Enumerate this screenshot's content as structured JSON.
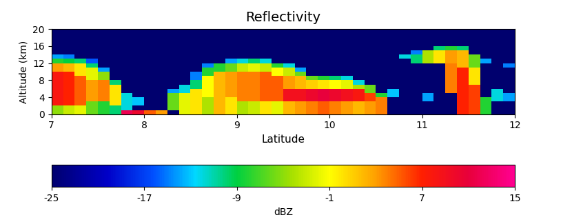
{
  "chart_data": {
    "type": "heatmap",
    "title": "Reflectivity",
    "x_label": "Latitude",
    "y_label": "Altitude (km)",
    "xlim": [
      7,
      12
    ],
    "xticks": [
      7,
      8,
      9,
      10,
      11,
      12
    ],
    "ylim": [
      0,
      20
    ],
    "yticks": [
      0,
      4,
      8,
      12,
      16,
      20
    ],
    "x_edges": [
      7,
      7.125,
      7.25,
      7.375,
      7.5,
      7.625,
      7.75,
      7.875,
      8,
      8.125,
      8.25,
      8.375,
      8.5,
      8.625,
      8.75,
      8.875,
      9,
      9.125,
      9.25,
      9.375,
      9.5,
      9.625,
      9.75,
      9.875,
      10,
      10.125,
      10.25,
      10.375,
      10.5,
      10.625,
      10.75,
      10.875,
      11,
      11.125,
      11.25,
      11.375,
      11.5,
      11.625,
      11.75,
      11.875,
      12
    ],
    "y_edges": [
      0,
      1,
      2,
      3,
      4,
      5,
      6,
      7,
      8,
      9,
      10,
      11,
      12,
      13,
      14,
      15,
      16,
      17,
      18,
      19,
      20
    ],
    "cells": [
      [
        -5,
        -3,
        -2,
        -6,
        -8,
        -10,
        12,
        10,
        5,
        3,
        -25,
        -2,
        0,
        -4,
        2,
        0,
        -4,
        -3,
        0,
        -2,
        2,
        3,
        4,
        5,
        4,
        3,
        2,
        3,
        4,
        -25,
        -25,
        -25,
        -25,
        -25,
        -25,
        7,
        6,
        -8,
        -25,
        -25
      ],
      [
        -5,
        -3,
        -2,
        -6,
        -8,
        -10,
        -12,
        -25,
        -25,
        -25,
        -6,
        -2,
        0,
        -4,
        2,
        0,
        -4,
        -3,
        0,
        -2,
        2,
        3,
        4,
        5,
        4,
        3,
        2,
        3,
        4,
        -25,
        -25,
        -25,
        -25,
        -25,
        -25,
        7,
        6,
        -8,
        -25,
        -25
      ],
      [
        8,
        7,
        5,
        -6,
        -8,
        0,
        -12,
        -13,
        -25,
        -25,
        -6,
        -2,
        0,
        -4,
        2,
        0,
        -4,
        -3,
        0,
        -2,
        2,
        3,
        4,
        5,
        4,
        3,
        2,
        3,
        4,
        -25,
        -25,
        -25,
        -25,
        -25,
        -25,
        7,
        6,
        -8,
        -25,
        -25
      ],
      [
        8,
        7,
        5,
        3,
        4,
        0,
        -12,
        -13,
        -25,
        -25,
        -6,
        -2,
        0,
        -4,
        2,
        0,
        4,
        4,
        5,
        5,
        9,
        9,
        10,
        11,
        10,
        9,
        8,
        6,
        4,
        -25,
        -25,
        -25,
        -14,
        -25,
        -25,
        7,
        6,
        -8,
        -12,
        -14
      ],
      [
        8,
        7,
        5,
        3,
        4,
        0,
        -12,
        -25,
        -25,
        -25,
        -6,
        -2,
        0,
        -1,
        2,
        3,
        4,
        4,
        5,
        5,
        9,
        9,
        10,
        11,
        10,
        9,
        8,
        6,
        -8,
        -13,
        -25,
        -25,
        -14,
        -25,
        -25,
        7,
        6,
        -25,
        -12,
        -14
      ],
      [
        8,
        7,
        5,
        3,
        4,
        0,
        -25,
        -25,
        -25,
        -25,
        -14,
        -12,
        0,
        -1,
        2,
        3,
        4,
        4,
        5,
        5,
        9,
        9,
        10,
        11,
        10,
        9,
        8,
        -6,
        -25,
        -13,
        -25,
        -25,
        -25,
        -25,
        4,
        7,
        6,
        -25,
        -12,
        -25
      ],
      [
        8,
        7,
        5,
        3,
        4,
        0,
        -25,
        -25,
        -25,
        -25,
        -25,
        -12,
        -10,
        -1,
        2,
        3,
        4,
        4,
        5,
        5,
        3,
        2,
        1,
        0,
        -1,
        -2,
        -4,
        -6,
        -25,
        -25,
        -25,
        -25,
        -25,
        -25,
        4,
        7,
        6,
        -25,
        -25,
        -25
      ],
      [
        8,
        7,
        5,
        3,
        4,
        -10,
        -25,
        -25,
        -25,
        -25,
        -25,
        -25,
        -10,
        -1,
        2,
        3,
        4,
        4,
        5,
        5,
        3,
        2,
        1,
        0,
        -1,
        -2,
        -12,
        -25,
        -25,
        -25,
        -25,
        -25,
        -25,
        -25,
        4,
        7,
        0,
        -25,
        -25,
        -25
      ],
      [
        8,
        7,
        5,
        -2,
        -5,
        -25,
        -25,
        -25,
        -25,
        -25,
        -25,
        -25,
        -15,
        -1,
        2,
        3,
        4,
        4,
        5,
        5,
        3,
        2,
        -6,
        -8,
        -10,
        -12,
        -25,
        -25,
        -25,
        -25,
        -25,
        -25,
        -25,
        -25,
        4,
        7,
        0,
        -25,
        -25,
        -25
      ],
      [
        8,
        7,
        0,
        -2,
        -5,
        -25,
        -25,
        -25,
        -25,
        -25,
        -25,
        -25,
        -15,
        -8,
        2,
        3,
        4,
        4,
        5,
        -1,
        -3,
        -6,
        -25,
        -25,
        -25,
        -25,
        -25,
        -25,
        -25,
        -25,
        -25,
        -25,
        -25,
        -25,
        4,
        7,
        0,
        -25,
        -25,
        -25
      ],
      [
        3,
        2,
        0,
        -2,
        -14,
        -25,
        -25,
        -25,
        -25,
        -25,
        -25,
        -25,
        -25,
        -8,
        -8,
        -6,
        -3,
        -2,
        -3,
        -1,
        -3,
        -14,
        -25,
        -25,
        -25,
        -25,
        -25,
        -25,
        -25,
        -25,
        -25,
        -25,
        -25,
        -25,
        4,
        7,
        0,
        -25,
        -25,
        -25
      ],
      [
        3,
        2,
        0,
        -10,
        -25,
        -25,
        -25,
        -25,
        -25,
        -25,
        -25,
        -25,
        -25,
        -15,
        -8,
        -6,
        -3,
        -2,
        -3,
        -8,
        -12,
        -25,
        -25,
        -25,
        -25,
        -25,
        -25,
        -25,
        -25,
        -25,
        -25,
        -25,
        -25,
        -25,
        4,
        2,
        -6,
        -25,
        -25,
        -15
      ],
      [
        -8,
        -9,
        -10,
        -16,
        -25,
        -25,
        -25,
        -25,
        -25,
        -25,
        -25,
        -25,
        -25,
        -25,
        -25,
        -14,
        -12,
        -10,
        -12,
        -25,
        -25,
        -25,
        -25,
        -25,
        -25,
        -25,
        -25,
        -25,
        -25,
        -25,
        -25,
        -10,
        -4,
        0,
        3,
        2,
        -6,
        -14,
        -25,
        -25
      ],
      [
        -14,
        -15,
        -25,
        -25,
        -25,
        -25,
        -25,
        -25,
        -25,
        -25,
        -25,
        -25,
        -25,
        -25,
        -25,
        -25,
        -25,
        -25,
        -25,
        -25,
        -25,
        -25,
        -25,
        -25,
        -25,
        -25,
        -25,
        -25,
        -25,
        -25,
        -12,
        -10,
        -4,
        0,
        3,
        2,
        -6,
        -25,
        -25,
        -25
      ],
      [
        -25,
        -25,
        -25,
        -25,
        -25,
        -25,
        -25,
        -25,
        -25,
        -25,
        -25,
        -25,
        -25,
        -25,
        -25,
        -25,
        -25,
        -25,
        -25,
        -25,
        -25,
        -25,
        -25,
        -25,
        -25,
        -25,
        -25,
        -25,
        -25,
        -25,
        -25,
        -15,
        -4,
        0,
        3,
        2,
        -25,
        -25,
        -25,
        -25
      ],
      [
        -25,
        -25,
        -25,
        -25,
        -25,
        -25,
        -25,
        -25,
        -25,
        -25,
        -25,
        -25,
        -25,
        -25,
        -25,
        -25,
        -25,
        -25,
        -25,
        -25,
        -25,
        -25,
        -25,
        -25,
        -25,
        -25,
        -25,
        -25,
        -25,
        -25,
        -25,
        -25,
        -25,
        -10,
        -8,
        -10,
        -25,
        -25,
        -25,
        -25
      ],
      [
        -25,
        -25,
        -25,
        -25,
        -25,
        -25,
        -25,
        -25,
        -25,
        -25,
        -25,
        -25,
        -25,
        -25,
        -25,
        -25,
        -25,
        -25,
        -25,
        -25,
        -25,
        -25,
        -25,
        -25,
        -25,
        -25,
        -25,
        -25,
        -25,
        -25,
        -25,
        -25,
        -25,
        -25,
        -25,
        -25,
        -25,
        -25,
        -25,
        -25
      ],
      [
        -25,
        -25,
        -25,
        -25,
        -25,
        -25,
        -25,
        -25,
        -25,
        -25,
        -25,
        -25,
        -25,
        -25,
        -25,
        -25,
        -25,
        -25,
        -25,
        -25,
        -25,
        -25,
        -25,
        -25,
        -25,
        -25,
        -25,
        -25,
        -25,
        -25,
        -25,
        -25,
        -25,
        -25,
        -25,
        -25,
        -25,
        -25,
        -25,
        -25
      ],
      [
        -25,
        -25,
        -25,
        -25,
        -25,
        -25,
        -25,
        -25,
        -25,
        -25,
        -25,
        -25,
        -25,
        -25,
        -25,
        -25,
        -25,
        -25,
        -25,
        -25,
        -25,
        -25,
        -25,
        -25,
        -25,
        -25,
        -25,
        -25,
        -25,
        -25,
        -25,
        -25,
        -25,
        -25,
        -25,
        -25,
        -25,
        -25,
        -25,
        -25
      ],
      [
        -25,
        -25,
        -25,
        -25,
        -25,
        -25,
        -25,
        -25,
        -25,
        -25,
        -25,
        -25,
        -25,
        -25,
        -25,
        -25,
        -25,
        -25,
        -25,
        -25,
        -25,
        -25,
        -25,
        -25,
        -25,
        -25,
        -25,
        -25,
        -25,
        -25,
        -25,
        -25,
        -25,
        -25,
        -25,
        -25,
        -25,
        -25,
        -25,
        -25
      ]
    ],
    "colorbar": {
      "label": "dBZ",
      "range": [
        -25,
        15
      ],
      "ticks": [
        -25,
        -17,
        -9,
        -1,
        7,
        15
      ]
    }
  }
}
